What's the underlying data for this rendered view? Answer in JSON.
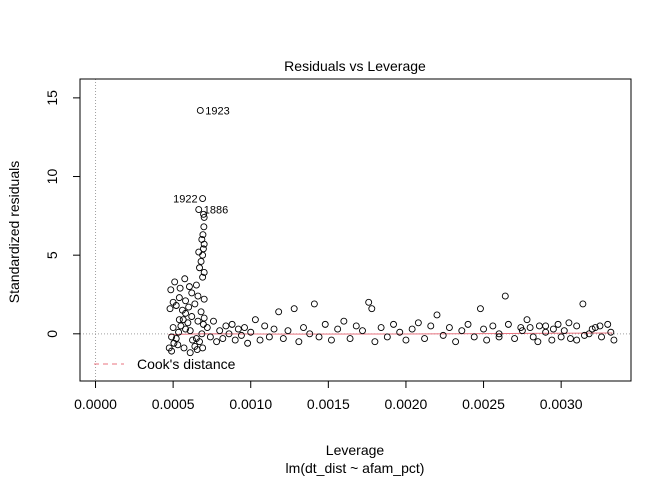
{
  "chart_data": {
    "type": "scatter",
    "title": "Residuals vs Leverage",
    "xlabel": "Leverage",
    "sublabel": "lm(dt_dist ~ afam_pct)",
    "ylabel": "Standardized residuals",
    "xlim": [
      -0.0001,
      0.00345
    ],
    "ylim": [
      -3.0,
      16.2
    ],
    "x_ticks": [
      0.0,
      0.0005,
      0.001,
      0.0015,
      0.002,
      0.0025,
      0.003
    ],
    "x_tick_labels": [
      "0.0000",
      "0.0005",
      "0.0010",
      "0.0015",
      "0.0020",
      "0.0025",
      "0.0030"
    ],
    "y_ticks": [
      0,
      5,
      10,
      15
    ],
    "y_tick_labels": [
      "0",
      "5",
      "10",
      "15"
    ],
    "legend": {
      "label": "Cook's distance",
      "position": "bottom-left",
      "color": "#e8737f"
    },
    "reference_lines": {
      "x": 0,
      "y": 0,
      "style": "dotted",
      "color": "#a0a0a0"
    },
    "smoother_color": "#e8737f",
    "labeled_points": [
      {
        "label": "1923",
        "x": 0.000675,
        "y": 14.2
      },
      {
        "label": "1922",
        "x": 0.00069,
        "y": 8.6
      },
      {
        "label": "1886",
        "x": 0.000665,
        "y": 7.9
      }
    ],
    "series": [
      {
        "points": [
          [
            0.000475,
            -0.9
          ],
          [
            0.00049,
            -1.1
          ],
          [
            0.000505,
            -0.6
          ],
          [
            0.00052,
            -0.3
          ],
          [
            0.000535,
            0.1
          ],
          [
            0.00055,
            0.5
          ],
          [
            0.000565,
            0.9
          ],
          [
            0.00058,
            1.3
          ],
          [
            0.000595,
            0.7
          ],
          [
            0.00061,
            0.2
          ],
          [
            0.000625,
            -0.4
          ],
          [
            0.00064,
            -0.8
          ],
          [
            0.000655,
            -1.0
          ],
          [
            0.00067,
            -0.5
          ],
          [
            0.000685,
            0.0
          ],
          [
            0.000695,
            0.6
          ],
          [
            0.00048,
            1.6
          ],
          [
            0.0005,
            2.0
          ],
          [
            0.00052,
            1.8
          ],
          [
            0.00054,
            2.3
          ],
          [
            0.00056,
            1.5
          ],
          [
            0.00058,
            2.1
          ],
          [
            0.0006,
            1.7
          ],
          [
            0.00062,
            2.6
          ],
          [
            0.00064,
            1.9
          ],
          [
            0.00066,
            2.4
          ],
          [
            0.00068,
            1.4
          ],
          [
            0.0007,
            2.2
          ],
          [
            0.000485,
            2.8
          ],
          [
            0.00051,
            3.3
          ],
          [
            0.000545,
            2.9
          ],
          [
            0.000575,
            3.5
          ],
          [
            0.000605,
            3.0
          ],
          [
            0.00065,
            3.1
          ],
          [
            0.00069,
            3.6
          ],
          [
            0.0007,
            3.9
          ],
          [
            0.00049,
            -0.2
          ],
          [
            0.00053,
            -0.7
          ],
          [
            0.00057,
            -0.9
          ],
          [
            0.00061,
            -1.2
          ],
          [
            0.00065,
            -0.3
          ],
          [
            0.00069,
            -0.9
          ],
          [
            0.0005,
            0.4
          ],
          [
            0.00054,
            0.9
          ],
          [
            0.00058,
            0.3
          ],
          [
            0.00062,
            1.1
          ],
          [
            0.00066,
            0.8
          ],
          [
            0.0007,
            1.0
          ],
          [
            0.00067,
            4.2
          ],
          [
            0.00068,
            4.6
          ],
          [
            0.00069,
            5.0
          ],
          [
            0.000695,
            5.4
          ],
          [
            0.0007,
            5.7
          ],
          [
            0.000665,
            5.2
          ],
          [
            0.000685,
            6.0
          ],
          [
            0.000692,
            6.3
          ],
          [
            0.000698,
            6.8
          ],
          [
            0.0007,
            7.4
          ],
          [
            0.000696,
            7.6
          ],
          [
            0.00072,
            0.4
          ],
          [
            0.00074,
            -0.2
          ],
          [
            0.00076,
            0.8
          ],
          [
            0.00078,
            -0.5
          ],
          [
            0.0008,
            0.2
          ],
          [
            0.00082,
            -0.3
          ],
          [
            0.00084,
            0.5
          ],
          [
            0.00086,
            0.0
          ],
          [
            0.00088,
            0.6
          ],
          [
            0.0009,
            -0.4
          ],
          [
            0.00092,
            0.3
          ],
          [
            0.00094,
            -0.1
          ],
          [
            0.00096,
            0.4
          ],
          [
            0.00098,
            -0.6
          ],
          [
            0.001,
            0.1
          ],
          [
            0.00103,
            0.9
          ],
          [
            0.00106,
            -0.4
          ],
          [
            0.00109,
            0.5
          ],
          [
            0.00112,
            -0.2
          ],
          [
            0.00115,
            0.3
          ],
          [
            0.00118,
            1.4
          ],
          [
            0.00121,
            -0.3
          ],
          [
            0.00124,
            0.2
          ],
          [
            0.00128,
            1.6
          ],
          [
            0.00131,
            -0.5
          ],
          [
            0.00134,
            0.4
          ],
          [
            0.00138,
            0.0
          ],
          [
            0.00141,
            1.9
          ],
          [
            0.00144,
            -0.2
          ],
          [
            0.00148,
            0.6
          ],
          [
            0.00152,
            -0.4
          ],
          [
            0.00156,
            0.3
          ],
          [
            0.0016,
            0.8
          ],
          [
            0.00164,
            -0.3
          ],
          [
            0.00168,
            0.5
          ],
          [
            0.00172,
            0.2
          ],
          [
            0.00176,
            2.0
          ],
          [
            0.00178,
            1.6
          ],
          [
            0.0018,
            -0.5
          ],
          [
            0.00184,
            0.4
          ],
          [
            0.00188,
            -0.2
          ],
          [
            0.00192,
            0.6
          ],
          [
            0.00196,
            0.1
          ],
          [
            0.002,
            -0.4
          ],
          [
            0.00204,
            0.3
          ],
          [
            0.00208,
            0.7
          ],
          [
            0.00212,
            -0.3
          ],
          [
            0.00216,
            0.5
          ],
          [
            0.0022,
            1.2
          ],
          [
            0.00224,
            -0.1
          ],
          [
            0.00228,
            0.4
          ],
          [
            0.00232,
            -0.5
          ],
          [
            0.00236,
            0.2
          ],
          [
            0.0024,
            0.6
          ],
          [
            0.00244,
            -0.2
          ],
          [
            0.00248,
            1.6
          ],
          [
            0.0025,
            0.3
          ],
          [
            0.00252,
            -0.4
          ],
          [
            0.00256,
            0.5
          ],
          [
            0.0026,
            0.0
          ],
          [
            0.00264,
            2.4
          ],
          [
            0.00266,
            0.6
          ],
          [
            0.0027,
            -0.3
          ],
          [
            0.00274,
            0.4
          ],
          [
            0.00278,
            0.9
          ],
          [
            0.00282,
            -0.2
          ],
          [
            0.00286,
            0.5
          ],
          [
            0.0029,
            0.1
          ],
          [
            0.00294,
            -0.4
          ],
          [
            0.00298,
            0.6
          ],
          [
            0.00302,
            0.2
          ],
          [
            0.00306,
            -0.3
          ],
          [
            0.0031,
            0.5
          ],
          [
            0.00314,
            1.9
          ],
          [
            0.00318,
            0.0
          ],
          [
            0.00322,
            0.4
          ],
          [
            0.00326,
            -0.2
          ],
          [
            0.0033,
            0.6
          ],
          [
            0.00332,
            0.1
          ],
          [
            0.00334,
            -0.4
          ],
          [
            0.00275,
            0.2
          ],
          [
            0.00285,
            -0.5
          ],
          [
            0.00295,
            0.3
          ],
          [
            0.00305,
            0.7
          ],
          [
            0.00315,
            -0.1
          ],
          [
            0.00325,
            0.5
          ],
          [
            0.0026,
            -0.2
          ],
          [
            0.0029,
            0.5
          ],
          [
            0.0032,
            0.3
          ],
          [
            0.003,
            -0.2
          ],
          [
            0.0028,
            0.4
          ],
          [
            0.0031,
            -0.4
          ]
        ]
      }
    ]
  }
}
